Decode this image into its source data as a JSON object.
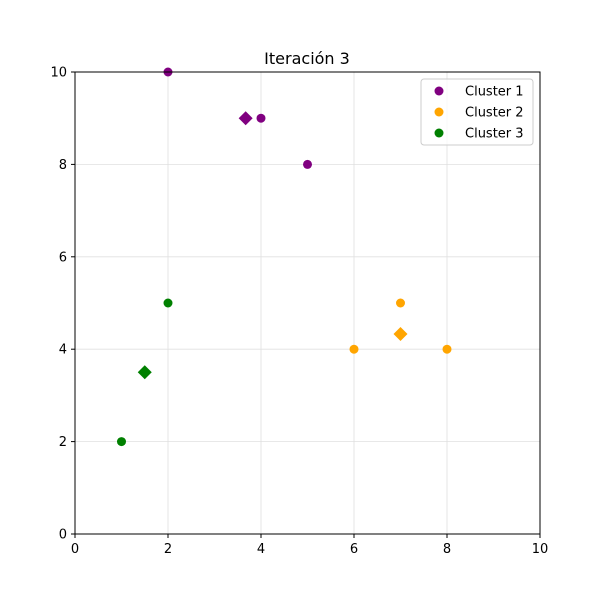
{
  "chart_data": {
    "type": "scatter",
    "title": "Iteración 3",
    "xlabel": "",
    "ylabel": "",
    "xlim": [
      0,
      10
    ],
    "ylim": [
      0,
      10
    ],
    "xticks": [
      0,
      2,
      4,
      6,
      8,
      10
    ],
    "yticks": [
      0,
      2,
      4,
      6,
      8,
      10
    ],
    "grid": true,
    "legend_position": "top-right",
    "series": [
      {
        "name": "Cluster 1",
        "color": "#800080",
        "points": [
          {
            "x": 2,
            "y": 10
          },
          {
            "x": 4,
            "y": 9
          },
          {
            "x": 5,
            "y": 8
          }
        ],
        "centroid": {
          "x": 3.67,
          "y": 9
        }
      },
      {
        "name": "Cluster 2",
        "color": "#FFA500",
        "points": [
          {
            "x": 6,
            "y": 4
          },
          {
            "x": 7,
            "y": 5
          },
          {
            "x": 8,
            "y": 4
          }
        ],
        "centroid": {
          "x": 7,
          "y": 4.33
        }
      },
      {
        "name": "Cluster 3",
        "color": "#008000",
        "points": [
          {
            "x": 1,
            "y": 2
          },
          {
            "x": 2,
            "y": 5
          }
        ],
        "centroid": {
          "x": 1.5,
          "y": 3.5
        }
      }
    ]
  }
}
